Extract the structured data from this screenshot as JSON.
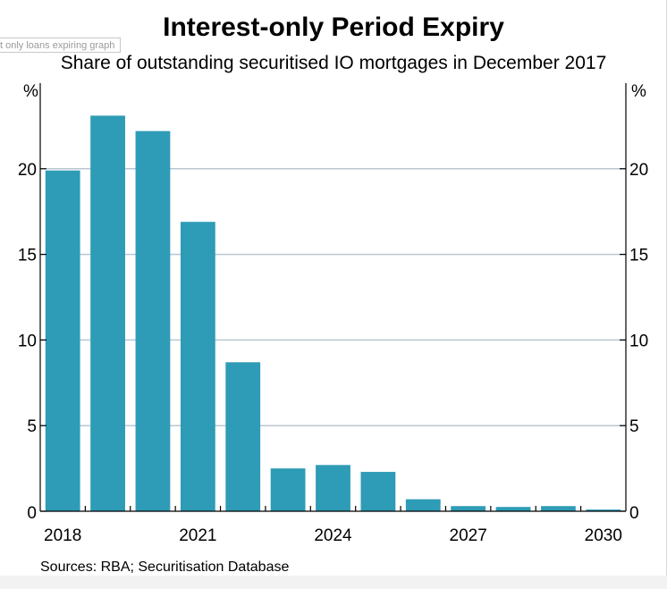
{
  "tooltip": {
    "text": "t only loans expiring graph"
  },
  "chart_data": {
    "type": "bar",
    "title": "Interest-only Period Expiry",
    "subtitle": "Share of outstanding securitised IO mortgages in December 2017",
    "ylabel_left": "%",
    "ylabel_right": "%",
    "ylim": [
      0,
      25
    ],
    "yticks": [
      0,
      5,
      10,
      15,
      20
    ],
    "x_tick_labels": [
      "2018",
      "2021",
      "2024",
      "2027",
      "2030"
    ],
    "categories": [
      "2018",
      "2019",
      "2020",
      "2021",
      "2022",
      "2023",
      "2024",
      "2025",
      "2026",
      "2027",
      "2028",
      "2029",
      "2030"
    ],
    "values": [
      19.9,
      23.1,
      22.2,
      16.9,
      8.7,
      2.5,
      2.7,
      2.3,
      0.7,
      0.3,
      0.25,
      0.3,
      0.1
    ],
    "bar_color": "#2e9cb6",
    "grid": true,
    "source": "Sources: RBA; Securitisation Database"
  }
}
